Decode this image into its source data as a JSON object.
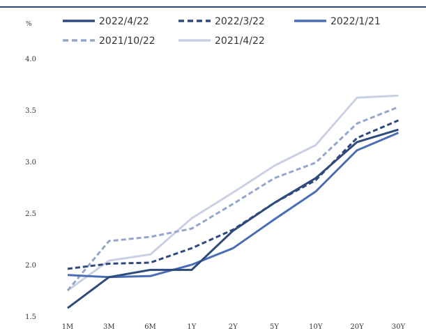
{
  "chart_data": {
    "type": "line",
    "title": "",
    "xlabel": "",
    "ylabel": "%",
    "categories": [
      "1M",
      "3M",
      "6M",
      "1Y",
      "2Y",
      "5Y",
      "10Y",
      "20Y",
      "30Y"
    ],
    "ylim": [
      1.5,
      4.0
    ],
    "yticks": [
      "1.5",
      "2.0",
      "2.5",
      "3.0",
      "3.5",
      "4.0"
    ],
    "grid": false,
    "legend": "top",
    "series": [
      {
        "name": "2022/4/22",
        "color": "#2e4a7d",
        "dash": "solid",
        "values": [
          1.58,
          1.88,
          1.95,
          1.95,
          2.33,
          2.6,
          2.84,
          3.19,
          3.31
        ]
      },
      {
        "name": "2022/3/22",
        "color": "#2e4a7d",
        "dash": "dashed",
        "values": [
          1.96,
          2.01,
          2.02,
          2.16,
          2.34,
          2.6,
          2.82,
          3.23,
          3.4
        ]
      },
      {
        "name": "2022/1/21",
        "color": "#4a6db5",
        "dash": "solid",
        "values": [
          1.9,
          1.88,
          1.89,
          2.0,
          2.16,
          2.44,
          2.71,
          3.11,
          3.28
        ]
      },
      {
        "name": "2021/10/22",
        "color": "#95a6cc",
        "dash": "dashed",
        "values": [
          1.75,
          2.23,
          2.27,
          2.35,
          2.59,
          2.84,
          2.99,
          3.37,
          3.53
        ]
      },
      {
        "name": "2021/4/22",
        "color": "#c9d0e3",
        "dash": "solid",
        "values": [
          1.75,
          2.04,
          2.1,
          2.45,
          2.7,
          2.96,
          3.16,
          3.62,
          3.64
        ]
      }
    ]
  }
}
